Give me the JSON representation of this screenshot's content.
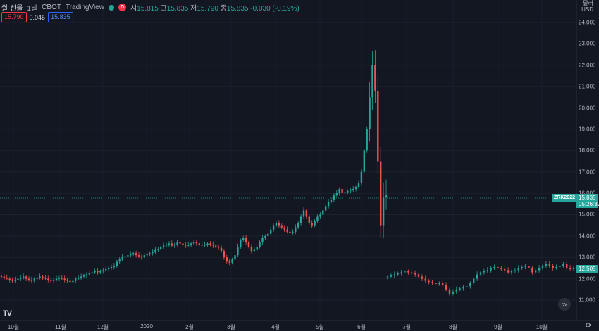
{
  "legend": {
    "symbol": "쌀 선물",
    "interval": "1날",
    "exchange": "CBOT",
    "source": "TradingView",
    "market_badge": "D",
    "open_key": "시",
    "open": "15.815",
    "high_key": "고",
    "high": "15.835",
    "low_key": "저",
    "low": "15.790",
    "close_key": "종",
    "close": "15.835",
    "change": "-0.030 (-0.19%)"
  },
  "order": {
    "sell": "15.790",
    "spread": "0.045",
    "buy": "15.835"
  },
  "currency": {
    "line1": "달러",
    "line2": "USD"
  },
  "price_scale": {
    "labels": [
      "24.000",
      "23.000",
      "22.000",
      "21.000",
      "20.000",
      "19.000",
      "18.000",
      "17.000",
      "16.000",
      "15.000",
      "14.000",
      "13.000",
      "12.000",
      "11.000"
    ]
  },
  "time_scale": {
    "labels": [
      "10월",
      "11월",
      "12월",
      "2020",
      "2월",
      "3월",
      "4월",
      "5월",
      "6월",
      "7월",
      "8월",
      "9월",
      "10월"
    ]
  },
  "markers": {
    "symbol_label": "ZRK2022",
    "last_price": "15.835",
    "countdown": "05:26:37",
    "other_price": "12.505"
  },
  "logo": "TV",
  "colors": {
    "background": "#131722",
    "up": "#26a69a",
    "down": "#ef5350",
    "text": "#b2b5be"
  },
  "chart_data": {
    "type": "candlestick",
    "title": "",
    "ylim": [
      11,
      24
    ],
    "x_range": [
      "2019-10",
      "2020-10"
    ],
    "series": [
      {
        "closes": [
          12.1,
          12.05,
          12.0,
          11.95,
          11.9,
          11.95,
          12.0,
          12.05,
          12.1,
          12.0,
          11.95,
          11.9,
          12.0,
          12.05,
          12.1,
          12.05,
          12.0,
          11.95,
          11.9,
          11.95,
          12.0,
          12.05,
          12.0,
          11.95,
          11.9,
          11.85,
          11.9,
          12.0,
          12.05,
          12.1,
          12.15,
          12.2,
          12.25,
          12.3,
          12.35,
          12.3,
          12.35,
          12.4,
          12.45,
          12.5,
          12.55,
          12.6,
          12.8,
          12.9,
          13.0,
          13.05,
          13.1,
          13.15,
          13.2,
          13.1,
          13.05,
          13.0,
          13.1,
          13.15,
          13.2,
          13.25,
          13.35,
          13.4,
          13.5,
          13.55,
          13.6,
          13.65,
          13.55,
          13.6,
          13.7,
          13.65,
          13.6,
          13.55,
          13.6,
          13.65,
          13.7,
          13.65,
          13.6,
          13.55,
          13.6,
          13.65,
          13.6,
          13.55,
          13.5,
          13.45,
          13.3,
          13.0,
          12.8,
          12.75,
          12.9,
          13.1,
          13.5,
          13.8,
          13.9,
          13.7,
          13.5,
          13.3,
          13.35,
          13.5,
          13.7,
          13.9,
          14.0,
          14.1,
          14.3,
          14.5,
          14.6,
          14.5,
          14.4,
          14.3,
          14.2,
          14.15,
          14.2,
          14.4,
          14.6,
          14.9,
          15.2,
          14.9,
          14.6,
          14.5,
          14.7,
          14.9,
          15.0,
          15.2,
          15.4,
          15.6,
          15.7,
          15.9,
          16.0,
          16.2,
          16.0,
          16.05,
          16.1,
          16.15,
          16.2,
          16.3,
          16.5,
          17.0,
          18.0,
          19.0,
          20.5,
          22.0,
          20.8,
          17.5,
          14.5,
          15.8,
          15.9,
          12.1,
          12.15,
          12.2,
          12.25,
          12.3,
          12.35,
          12.3,
          12.25,
          12.2,
          12.1,
          12.0,
          11.9,
          11.85,
          11.8,
          11.75,
          11.8,
          11.7,
          11.5,
          11.3,
          11.4,
          11.5,
          11.55,
          11.6,
          11.65,
          11.8,
          12.0,
          12.2,
          12.3,
          12.35,
          12.4,
          12.5,
          12.55,
          12.5,
          12.45,
          12.4,
          12.3,
          12.35,
          12.4,
          12.5,
          12.55,
          12.6,
          12.5,
          12.3,
          12.4,
          12.5,
          12.6,
          12.7,
          12.6,
          12.5,
          12.55,
          12.6,
          12.7,
          12.5,
          12.45,
          12.505
        ]
      }
    ]
  }
}
